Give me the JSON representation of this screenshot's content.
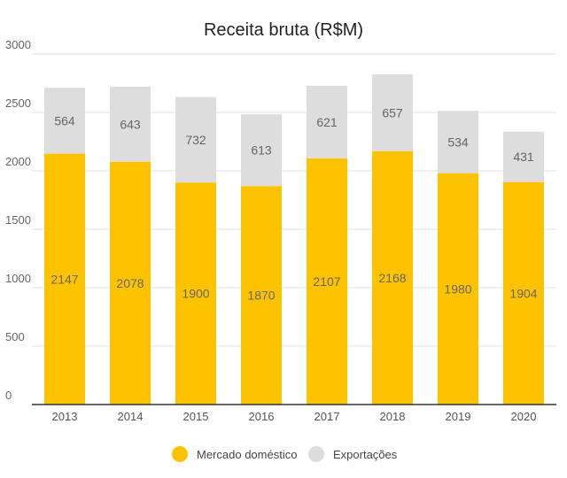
{
  "chart_data": {
    "type": "bar",
    "stacked": true,
    "title": "Receita bruta (R$M)",
    "xlabel": "",
    "ylabel": "",
    "categories": [
      "2013",
      "2014",
      "2015",
      "2016",
      "2017",
      "2018",
      "2019",
      "2020"
    ],
    "series": [
      {
        "name": "Mercado doméstico",
        "color": "#FDC300",
        "values": [
          2147,
          2078,
          1900,
          1870,
          2107,
          2168,
          1980,
          1904
        ]
      },
      {
        "name": "Exportações",
        "color": "#DDDDDD",
        "values": [
          564,
          643,
          732,
          613,
          621,
          657,
          534,
          431
        ]
      }
    ],
    "ylim": [
      0,
      3000
    ],
    "yticks": [
      0,
      500,
      1000,
      1500,
      2000,
      2500,
      3000
    ],
    "grid": true,
    "legend_position": "bottom-center"
  }
}
